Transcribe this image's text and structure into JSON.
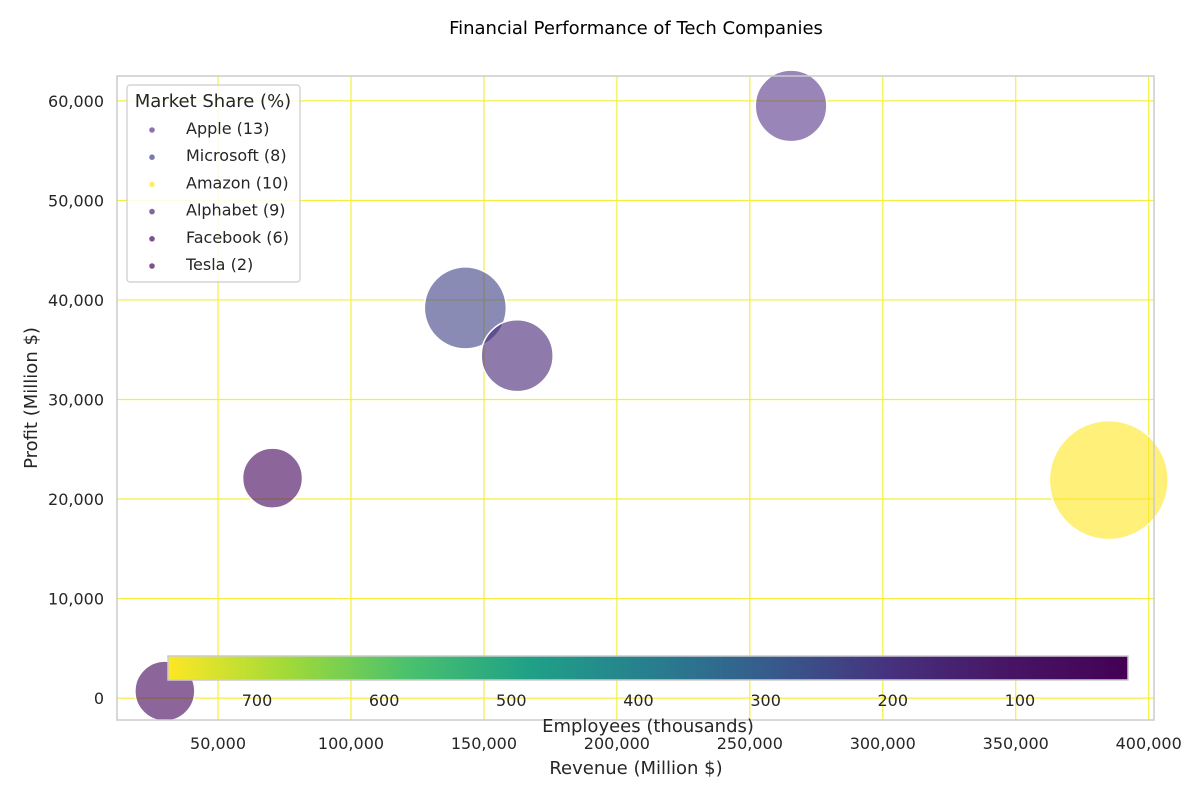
{
  "chart_data": {
    "type": "scatter",
    "title": "Financial Performance of Tech Companies",
    "xlabel": "Revenue (Million $)",
    "ylabel": "Profit (Million $)",
    "xlim": [
      12000,
      402000
    ],
    "ylim": [
      -2200,
      62500
    ],
    "xticks": [
      50000,
      100000,
      150000,
      200000,
      250000,
      300000,
      350000,
      400000
    ],
    "xtick_labels": [
      "50,000",
      "100,000",
      "150,000",
      "200,000",
      "250,000",
      "300,000",
      "350,000",
      "400,000"
    ],
    "yticks": [
      0,
      10000,
      20000,
      30000,
      40000,
      50000,
      60000
    ],
    "ytick_labels": [
      "0",
      "10,000",
      "20,000",
      "30,000",
      "40,000",
      "50,000",
      "60,000"
    ],
    "grid": true,
    "grid_color": "#f5ef3c",
    "legend": {
      "title": "Market Share (%)",
      "position": "top-left",
      "entries": [
        "Apple (13)",
        "Microsoft (8)",
        "Amazon (10)",
        "Alphabet (9)",
        "Facebook (6)",
        "Tesla (2)"
      ]
    },
    "colorbar": {
      "label": "Employees (thousands)",
      "orientation": "horizontal",
      "range": [
        15,
        770
      ],
      "reversed": true,
      "ticks": [
        700,
        600,
        500,
        400,
        300,
        200,
        100
      ],
      "tick_labels": [
        "700",
        "600",
        "500",
        "400",
        "300",
        "200",
        "100"
      ],
      "colormap": "viridis"
    },
    "points": [
      {
        "name": "Apple",
        "revenue": 265500,
        "profit": 59500,
        "market_share": 13,
        "employees": 147,
        "color": "#5b3a8c"
      },
      {
        "name": "Microsoft",
        "revenue": 143000,
        "profit": 39200,
        "market_share": 8,
        "employees": 240,
        "color": "#404387"
      },
      {
        "name": "Amazon",
        "revenue": 385000,
        "profit": 21900,
        "market_share": 10,
        "employees": 750,
        "color": "#fde725"
      },
      {
        "name": "Alphabet",
        "revenue": 162500,
        "profit": 34400,
        "market_share": 9,
        "employees": 150,
        "color": "#482878"
      },
      {
        "name": "Facebook",
        "revenue": 70500,
        "profit": 22100,
        "market_share": 6,
        "employees": 70,
        "color": "#46085c"
      },
      {
        "name": "Tesla",
        "revenue": 30000,
        "profit": 700,
        "market_share": 2,
        "employees": 70,
        "color": "#46085c"
      }
    ]
  }
}
